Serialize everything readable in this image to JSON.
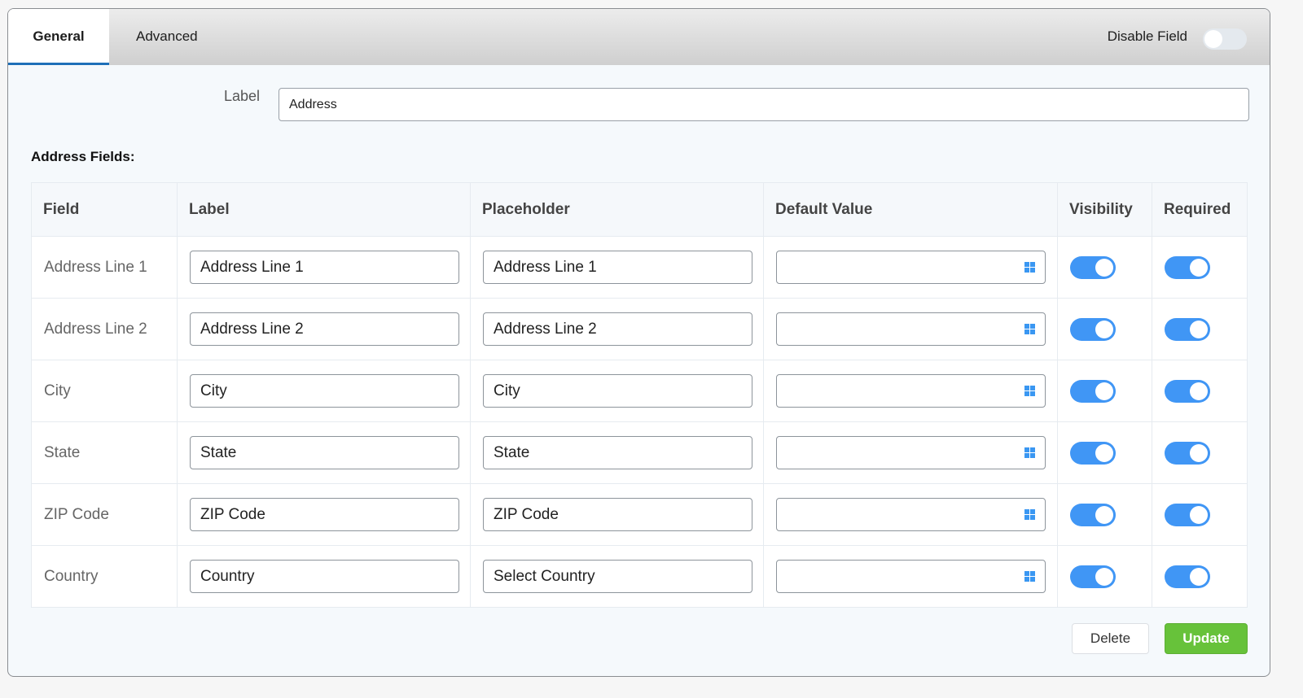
{
  "tabs": [
    {
      "label": "General",
      "active": true
    },
    {
      "label": "Advanced",
      "active": false
    }
  ],
  "disable_field": {
    "label": "Disable Field",
    "on": false
  },
  "label_field": {
    "label": "Label",
    "value": "Address"
  },
  "section_title": "Address Fields:",
  "columns": [
    "Field",
    "Label",
    "Placeholder",
    "Default Value",
    "Visibility",
    "Required"
  ],
  "rows": [
    {
      "field": "Address Line 1",
      "label": "Address Line 1",
      "placeholder": "Address Line 1",
      "default": "",
      "visible": true,
      "required": true
    },
    {
      "field": "Address Line 2",
      "label": "Address Line 2",
      "placeholder": "Address Line 2",
      "default": "",
      "visible": true,
      "required": true
    },
    {
      "field": "City",
      "label": "City",
      "placeholder": "City",
      "default": "",
      "visible": true,
      "required": true
    },
    {
      "field": "State",
      "label": "State",
      "placeholder": "State",
      "default": "",
      "visible": true,
      "required": true
    },
    {
      "field": "ZIP Code",
      "label": "ZIP Code",
      "placeholder": "ZIP Code",
      "default": "",
      "visible": true,
      "required": true
    },
    {
      "field": "Country",
      "label": "Country",
      "placeholder": "Select Country",
      "default": "",
      "visible": true,
      "required": true
    }
  ],
  "buttons": {
    "delete": "Delete",
    "update": "Update"
  },
  "colors": {
    "accent": "#4096f5",
    "update": "#67c23a",
    "tab_underline": "#1e6fb8"
  }
}
